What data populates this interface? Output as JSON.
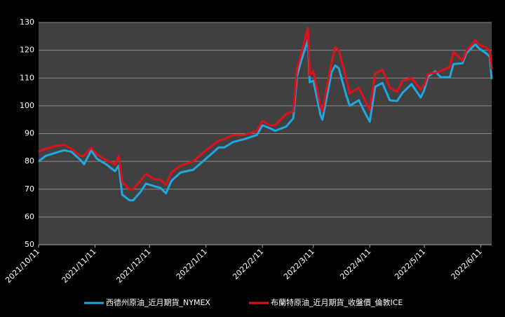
{
  "chart_data": {
    "type": "line",
    "x": [
      "2021/10/11",
      "2021/10/15",
      "2021/10/20",
      "2021/10/25",
      "2021/10/29",
      "2021/11/3",
      "2021/11/5",
      "2021/11/9",
      "2021/11/12",
      "2021/11/17",
      "2021/11/22",
      "2021/11/24",
      "2021/11/26",
      "2021/11/30",
      "2021/12/2",
      "2021/12/6",
      "2021/12/9",
      "2021/12/14",
      "2021/12/17",
      "2021/12/20",
      "2021/12/23",
      "2021/12/28",
      "2022/1/4",
      "2022/1/11",
      "2022/1/18",
      "2022/1/21",
      "2022/1/26",
      "2022/2/1",
      "2022/2/8",
      "2022/2/11",
      "2022/2/15",
      "2022/2/18",
      "2022/2/24",
      "2022/2/28",
      "2022/3/2",
      "2022/3/4",
      "2022/3/8",
      "2022/3/9",
      "2022/3/11",
      "2022/3/15",
      "2022/3/16",
      "2022/3/21",
      "2022/3/23",
      "2022/3/25",
      "2022/3/29",
      "2022/3/31",
      "2022/4/5",
      "2022/4/8",
      "2022/4/11",
      "2022/4/14",
      "2022/4/18",
      "2022/4/22",
      "2022/4/26",
      "2022/4/29",
      "2022/5/4",
      "2022/5/9",
      "2022/5/11",
      "2022/5/13",
      "2022/5/17",
      "2022/5/20",
      "2022/5/25",
      "2022/5/27",
      "2022/6/1",
      "2022/6/3",
      "2022/6/8",
      "2022/6/10",
      "2022/6/14",
      "2022/6/16",
      "2022/6/17"
    ],
    "series": [
      {
        "name": "西德州原油_近月期貨_NYMEX",
        "color": "#1fa8e0",
        "values": [
          80,
          82,
          83,
          84,
          83.5,
          80.5,
          79,
          84,
          81,
          79,
          76.5,
          78.5,
          68,
          66,
          66,
          69,
          72,
          71,
          70.5,
          68.5,
          73,
          76,
          77,
          81,
          85,
          85,
          87,
          88,
          89.5,
          93,
          92,
          91,
          92.5,
          95.5,
          110.5,
          115.5,
          123.7,
          108.5,
          109,
          96.5,
          95,
          112,
          114.5,
          113.5,
          104,
          100,
          102,
          98,
          94.3,
          106.9,
          108.2,
          102,
          101.7,
          104.7,
          107.8,
          103,
          105.7,
          110.5,
          112.4,
          110.3,
          110.3,
          115,
          115.3,
          118.9,
          122.1,
          120.7,
          118.9,
          117.6,
          109.6
        ]
      },
      {
        "name": "布蘭特原油_近月期貨_收盤價_倫敦ICE",
        "color": "#e0101a",
        "values": [
          83.5,
          84.5,
          85.5,
          86,
          84.5,
          82,
          82,
          85,
          82.5,
          80.5,
          79,
          82,
          72.5,
          70,
          70,
          73,
          75.5,
          73.5,
          73.5,
          71.5,
          76,
          78.5,
          80,
          84,
          87.5,
          88,
          89.5,
          89.5,
          91,
          94.5,
          93,
          93,
          97,
          98,
          113,
          118,
          128,
          111,
          112.5,
          99.5,
          98,
          115.5,
          121,
          120,
          110,
          104.5,
          106.5,
          102.5,
          98.5,
          111.7,
          113,
          106.6,
          105,
          109,
          110,
          105.9,
          107.5,
          111.5,
          111.9,
          112.5,
          114,
          119.4,
          116.3,
          119.7,
          123.6,
          122,
          121,
          119.8,
          113.1
        ]
      }
    ],
    "xlim": [
      "2021/10/11",
      "2022/6/17"
    ],
    "xticks": [
      "2021/10/11",
      "2021/11/11",
      "2021/12/11",
      "2022/1/11",
      "2022/2/11",
      "2022/3/11",
      "2022/4/11",
      "2022/5/11",
      "2022/6/11"
    ],
    "ylim": [
      50,
      130
    ],
    "yticks": [
      50,
      60,
      70,
      80,
      90,
      100,
      110,
      120,
      130
    ],
    "grid": true,
    "legend": "bottom"
  }
}
